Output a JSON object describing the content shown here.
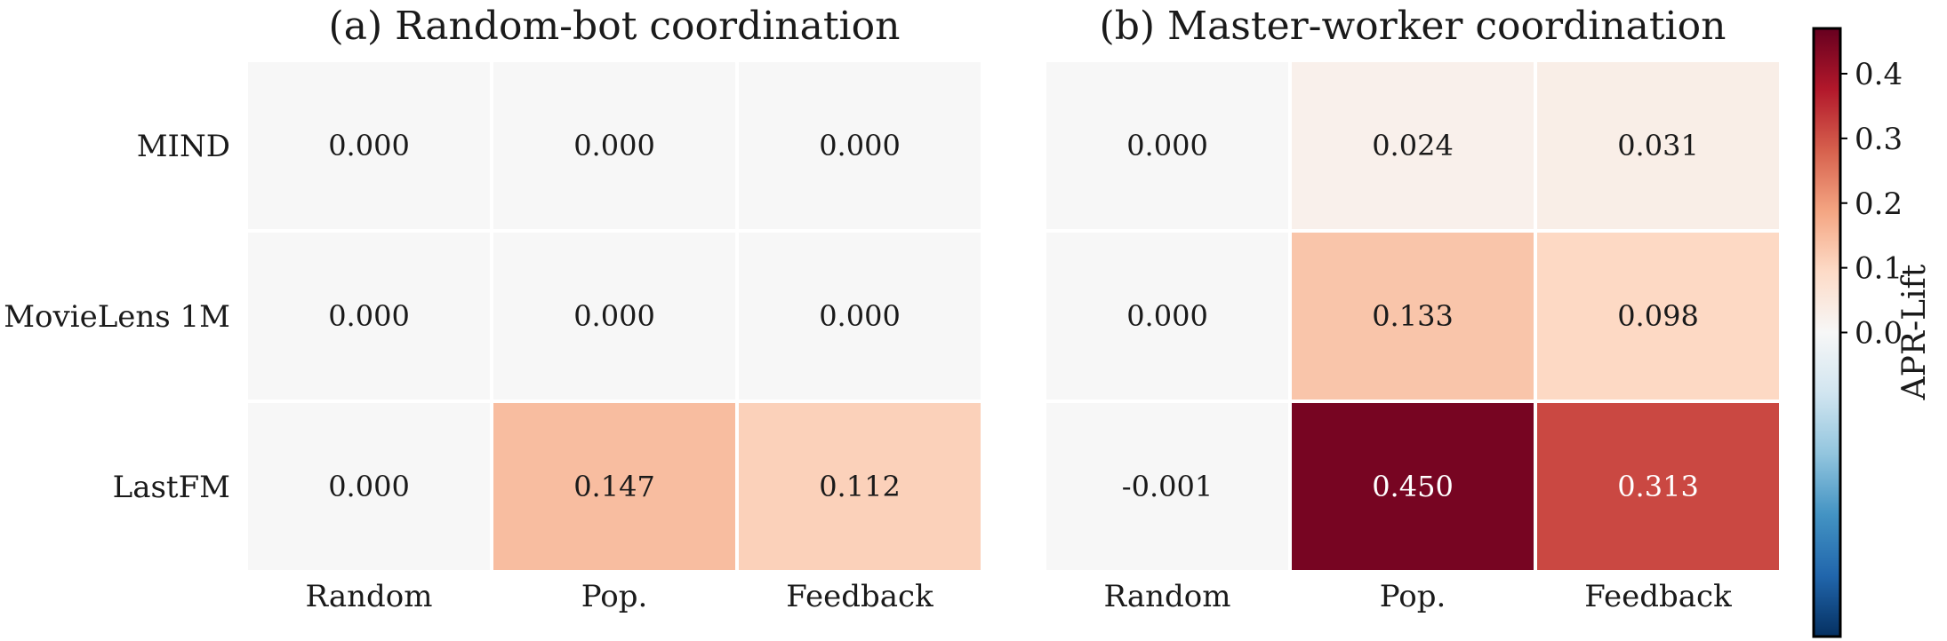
{
  "chart_data": {
    "type": "heatmap",
    "colorbar": {
      "label": "APR-Lift",
      "ticks": [
        "0.0",
        "0.1",
        "0.2",
        "0.3",
        "0.4"
      ],
      "tick_values": [
        0.0,
        0.1,
        0.2,
        0.3,
        0.4
      ],
      "range": [
        -0.47,
        0.47
      ],
      "colormap": "RdBu_r"
    },
    "panels": [
      {
        "title": "(a) Random-bot coordination",
        "rows": [
          "MIND",
          "MovieLens 1M",
          "LastFM"
        ],
        "columns": [
          "Random",
          "Pop.",
          "Feedback"
        ],
        "values": [
          [
            0.0,
            0.0,
            0.0
          ],
          [
            0.0,
            0.0,
            0.0
          ],
          [
            0.0,
            0.147,
            0.112
          ]
        ],
        "labels": [
          [
            "0.000",
            "0.000",
            "0.000"
          ],
          [
            "0.000",
            "0.000",
            "0.000"
          ],
          [
            "0.000",
            "0.147",
            "0.112"
          ]
        ]
      },
      {
        "title": "(b) Master-worker coordination",
        "rows": [
          "MIND",
          "MovieLens 1M",
          "LastFM"
        ],
        "columns": [
          "Random",
          "Pop.",
          "Feedback"
        ],
        "values": [
          [
            0.0,
            0.024,
            0.031
          ],
          [
            0.0,
            0.133,
            0.098
          ],
          [
            -0.001,
            0.45,
            0.313
          ]
        ],
        "labels": [
          [
            "0.000",
            "0.024",
            "0.031"
          ],
          [
            "0.000",
            "0.133",
            "0.098"
          ],
          [
            "-0.001",
            "0.450",
            "0.313"
          ]
        ]
      }
    ]
  }
}
